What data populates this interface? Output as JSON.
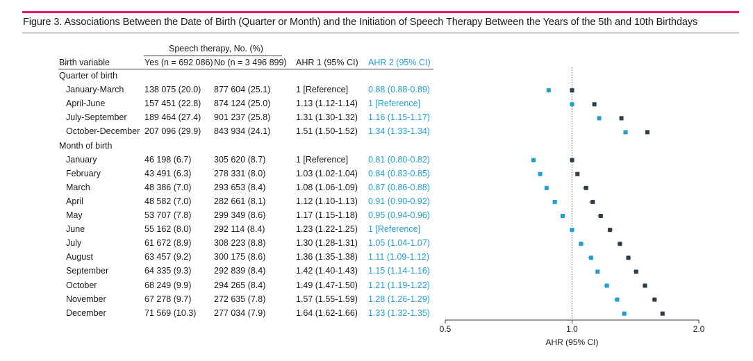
{
  "figure": {
    "title": "Figure 3. Associations Between the Date of Birth (Quarter or Month) and the Initiation of Speech Therapy Between the Years of the 5th and 10th Birthdays"
  },
  "table": {
    "header_group": "Speech therapy, No. (%)",
    "headers": {
      "variable": "Birth variable",
      "yes": "Yes (n = 692 086)",
      "no": "No (n = 3 496 899)",
      "ahr1": "AHR 1 (95% CI)",
      "ahr2": "AHR 2 (95% CI)"
    },
    "sections": [
      {
        "label": "Quarter of birth",
        "rows": [
          {
            "label": "January-March",
            "yes": "138 075 (20.0)",
            "no": "877 604 (25.1)",
            "ahr1": "1 [Reference]",
            "ahr2": "0.88 (0.88-0.89)"
          },
          {
            "label": "April-June",
            "yes": "157 451 (22.8)",
            "no": "874 124 (25.0)",
            "ahr1": "1.13 (1.12-1.14)",
            "ahr2": "1 [Reference]"
          },
          {
            "label": "July-September",
            "yes": "189 464 (27.4)",
            "no": "901 237 (25.8)",
            "ahr1": "1.31 (1.30-1.32)",
            "ahr2": "1.16 (1.15-1.17)"
          },
          {
            "label": "October-December",
            "yes": "207 096 (29.9)",
            "no": "843 934 (24.1)",
            "ahr1": "1.51 (1.50-1.52)",
            "ahr2": "1.34 (1.33-1.34)"
          }
        ]
      },
      {
        "label": "Month of birth",
        "rows": [
          {
            "label": "January",
            "yes": "46 198 (6.7)",
            "no": "305 620 (8.7)",
            "ahr1": "1 [Reference]",
            "ahr2": "0.81 (0.80-0.82)"
          },
          {
            "label": "February",
            "yes": "43 491 (6.3)",
            "no": "278 331 (8.0)",
            "ahr1": "1.03 (1.02-1.04)",
            "ahr2": "0.84 (0.83-0.85)"
          },
          {
            "label": "March",
            "yes": "48 386 (7.0)",
            "no": "293 653 (8.4)",
            "ahr1": "1.08 (1.06-1.09)",
            "ahr2": "0.87 (0.86-0.88)"
          },
          {
            "label": "April",
            "yes": "48 582 (7.0)",
            "no": "282 661 (8.1)",
            "ahr1": "1.12 (1.10-1.13)",
            "ahr2": "0.91 (0.90-0.92)"
          },
          {
            "label": "May",
            "yes": "53 707 (7.8)",
            "no": "299 349 (8.6)",
            "ahr1": "1.17 (1.15-1.18)",
            "ahr2": "0.95 (0.94-0.96)"
          },
          {
            "label": "June",
            "yes": "55 162 (8.0)",
            "no": "292 114 (8.4)",
            "ahr1": "1.23 (1.22-1.25)",
            "ahr2": "1 [Reference]"
          },
          {
            "label": "July",
            "yes": "61 672 (8.9)",
            "no": "308 223 (8.8)",
            "ahr1": "1.30 (1.28-1.31)",
            "ahr2": "1.05 (1.04-1.07)"
          },
          {
            "label": "August",
            "yes": "63 457 (9.2)",
            "no": "300 175 (8.6)",
            "ahr1": "1.36 (1.35-1.38)",
            "ahr2": "1.11 (1.09-1.12)"
          },
          {
            "label": "September",
            "yes": "64 335 (9.3)",
            "no": "292 839 (8.4)",
            "ahr1": "1.42 (1.40-1.43)",
            "ahr2": "1.15 (1.14-1.16)"
          },
          {
            "label": "October",
            "yes": "68 249 (9.9)",
            "no": "294 265 (8.4)",
            "ahr1": "1.49 (1.47-1.50)",
            "ahr2": "1.21 (1.19-1.22)"
          },
          {
            "label": "November",
            "yes": "67 278 (9.7)",
            "no": "272 635 (7.8)",
            "ahr1": "1.57 (1.55-1.59)",
            "ahr2": "1.28 (1.26-1.29)"
          },
          {
            "label": "December",
            "yes": "71 569 (10.3)",
            "no": "277 034 (7.9)",
            "ahr1": "1.64 (1.62-1.66)",
            "ahr2": "1.33 (1.32-1.35)"
          }
        ]
      }
    ]
  },
  "chart_data": {
    "type": "scatter",
    "subtype": "forest-plot",
    "xscale": "log",
    "xlim": [
      0.5,
      2.0
    ],
    "xticks": [
      0.5,
      1.0,
      2.0
    ],
    "xtick_labels": [
      "0.5",
      "1.0",
      "2.0"
    ],
    "xlabel": "AHR (95% CI)",
    "reference_line": 1.0,
    "series": [
      {
        "name": "AHR 1",
        "color": "#2d3e48",
        "points": [
          {
            "label": "January-March",
            "est": 1.0,
            "lo": 1.0,
            "hi": 1.0
          },
          {
            "label": "April-June",
            "est": 1.13,
            "lo": 1.12,
            "hi": 1.14
          },
          {
            "label": "July-September",
            "est": 1.31,
            "lo": 1.3,
            "hi": 1.32
          },
          {
            "label": "October-December",
            "est": 1.51,
            "lo": 1.5,
            "hi": 1.52
          },
          {
            "label": "January",
            "est": 1.0,
            "lo": 1.0,
            "hi": 1.0
          },
          {
            "label": "February",
            "est": 1.03,
            "lo": 1.02,
            "hi": 1.04
          },
          {
            "label": "March",
            "est": 1.08,
            "lo": 1.06,
            "hi": 1.09
          },
          {
            "label": "April",
            "est": 1.12,
            "lo": 1.1,
            "hi": 1.13
          },
          {
            "label": "May",
            "est": 1.17,
            "lo": 1.15,
            "hi": 1.18
          },
          {
            "label": "June",
            "est": 1.23,
            "lo": 1.22,
            "hi": 1.25
          },
          {
            "label": "July",
            "est": 1.3,
            "lo": 1.28,
            "hi": 1.31
          },
          {
            "label": "August",
            "est": 1.36,
            "lo": 1.35,
            "hi": 1.38
          },
          {
            "label": "September",
            "est": 1.42,
            "lo": 1.4,
            "hi": 1.43
          },
          {
            "label": "October",
            "est": 1.49,
            "lo": 1.47,
            "hi": 1.5
          },
          {
            "label": "November",
            "est": 1.57,
            "lo": 1.55,
            "hi": 1.59
          },
          {
            "label": "December",
            "est": 1.64,
            "lo": 1.62,
            "hi": 1.66
          }
        ]
      },
      {
        "name": "AHR 2",
        "color": "#1fa0d0",
        "points": [
          {
            "label": "January-March",
            "est": 0.88,
            "lo": 0.88,
            "hi": 0.89
          },
          {
            "label": "April-June",
            "est": 1.0,
            "lo": 1.0,
            "hi": 1.0
          },
          {
            "label": "July-September",
            "est": 1.16,
            "lo": 1.15,
            "hi": 1.17
          },
          {
            "label": "October-December",
            "est": 1.34,
            "lo": 1.33,
            "hi": 1.34
          },
          {
            "label": "January",
            "est": 0.81,
            "lo": 0.8,
            "hi": 0.82
          },
          {
            "label": "February",
            "est": 0.84,
            "lo": 0.83,
            "hi": 0.85
          },
          {
            "label": "March",
            "est": 0.87,
            "lo": 0.86,
            "hi": 0.88
          },
          {
            "label": "April",
            "est": 0.91,
            "lo": 0.9,
            "hi": 0.92
          },
          {
            "label": "May",
            "est": 0.95,
            "lo": 0.94,
            "hi": 0.96
          },
          {
            "label": "June",
            "est": 1.0,
            "lo": 1.0,
            "hi": 1.0
          },
          {
            "label": "July",
            "est": 1.05,
            "lo": 1.04,
            "hi": 1.07
          },
          {
            "label": "August",
            "est": 1.11,
            "lo": 1.09,
            "hi": 1.12
          },
          {
            "label": "September",
            "est": 1.15,
            "lo": 1.14,
            "hi": 1.16
          },
          {
            "label": "October",
            "est": 1.21,
            "lo": 1.19,
            "hi": 1.22
          },
          {
            "label": "November",
            "est": 1.28,
            "lo": 1.26,
            "hi": 1.29
          },
          {
            "label": "December",
            "est": 1.33,
            "lo": 1.32,
            "hi": 1.35
          }
        ]
      }
    ]
  }
}
